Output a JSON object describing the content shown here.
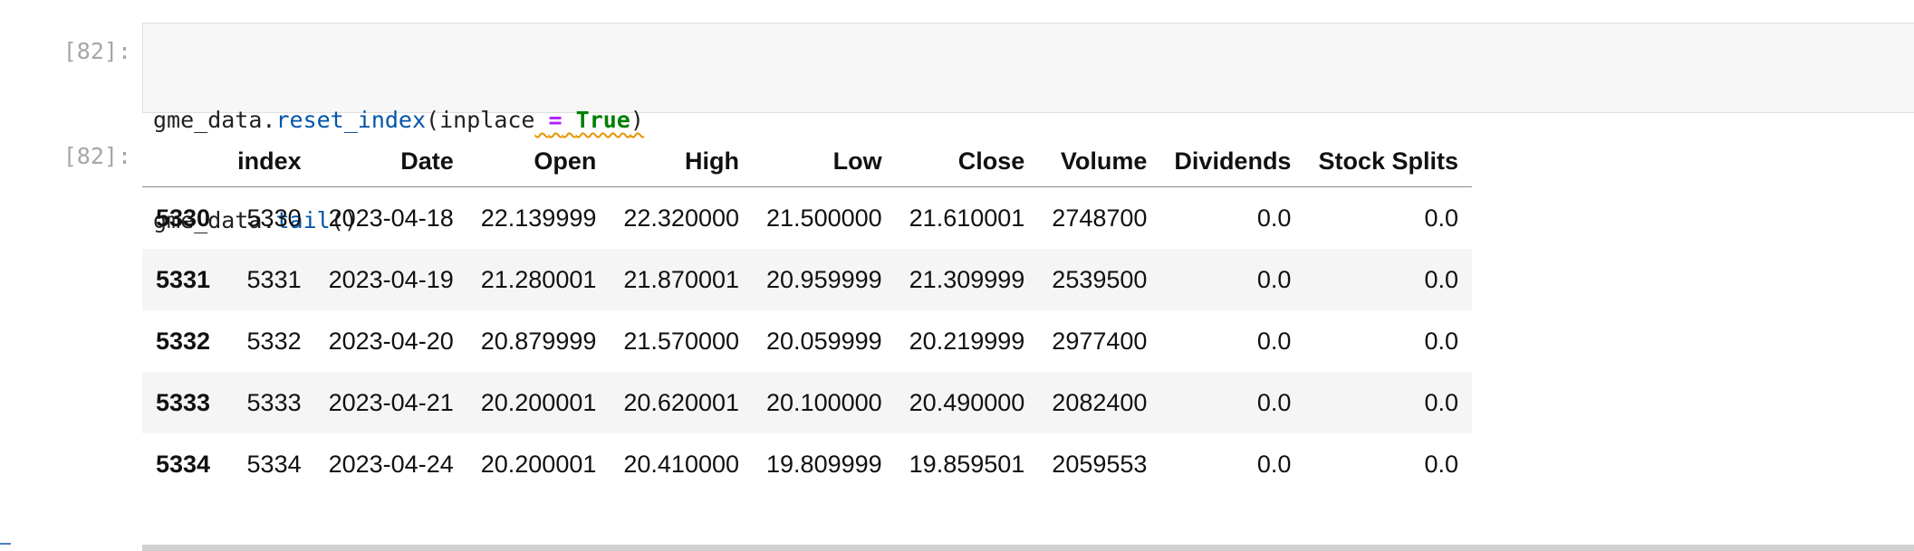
{
  "input_cell": {
    "prompt": "[82]:",
    "code": {
      "line1": {
        "obj": "gme_data.",
        "method": "reset_index",
        "open": "(",
        "param": "inplace",
        "space1": " ",
        "op": "=",
        "space2": " ",
        "value": "True",
        "close": ")"
      },
      "line2": {
        "obj": "gme_data.",
        "method": "tail",
        "parens": "()"
      }
    }
  },
  "output_cell": {
    "prompt": "[82]:",
    "table": {
      "columns": [
        "",
        "index",
        "Date",
        "Open",
        "High",
        "Low",
        "Close",
        "Volume",
        "Dividends",
        "Stock Splits"
      ],
      "rows": [
        {
          "label": "5330",
          "cells": [
            "5330",
            "2023-04-18",
            "22.139999",
            "22.320000",
            "21.500000",
            "21.610001",
            "2748700",
            "0.0",
            "0.0"
          ]
        },
        {
          "label": "5331",
          "cells": [
            "5331",
            "2023-04-19",
            "21.280001",
            "21.870001",
            "20.959999",
            "21.309999",
            "2539500",
            "0.0",
            "0.0"
          ]
        },
        {
          "label": "5332",
          "cells": [
            "5332",
            "2023-04-20",
            "20.879999",
            "21.570000",
            "20.059999",
            "20.219999",
            "2977400",
            "0.0",
            "0.0"
          ]
        },
        {
          "label": "5333",
          "cells": [
            "5333",
            "2023-04-21",
            "20.200001",
            "20.620001",
            "20.100000",
            "20.490000",
            "2082400",
            "0.0",
            "0.0"
          ]
        },
        {
          "label": "5334",
          "cells": [
            "5334",
            "2023-04-24",
            "20.200001",
            "20.410000",
            "19.809999",
            "19.859501",
            "2059553",
            "0.0",
            "0.0"
          ]
        }
      ]
    }
  },
  "colors": {
    "prompt": "#a6a6a6",
    "code_bg": "#f7f7f7",
    "function": "#0055aa",
    "operator": "#aa22ff",
    "keyword": "#008000",
    "warning_squiggle": "#e59400",
    "row_stripe": "#f5f5f5"
  }
}
